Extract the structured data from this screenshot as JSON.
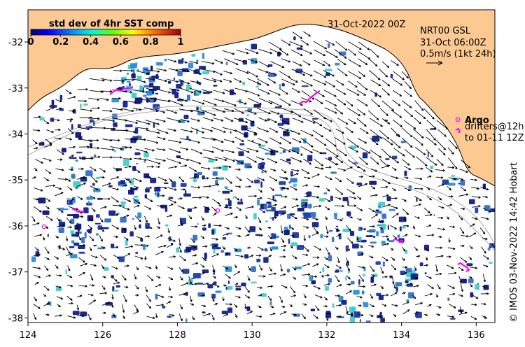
{
  "map": {
    "date_title": "31-Oct-2022 00Z",
    "product": {
      "line1": "NRT00 GSL",
      "line2": "31-Oct 06:00Z",
      "line3": "0.5m/s (1kt 24h)"
    },
    "colorbar": {
      "title": "std dev of 4hr SST comp",
      "ticks": [
        "0",
        "0.2",
        "0.4",
        "0.6",
        "0.8",
        "1"
      ],
      "range": [
        0,
        1
      ]
    },
    "legend": {
      "argo_label": "Argo",
      "drifters_line1": "drifters@12h",
      "drifters_line2": "to 01-11 12Z"
    },
    "credit": "© IMOS 03-Nov-2022 14:42 Hobart",
    "x_axis": {
      "ticks": [
        "124",
        "126",
        "128",
        "130",
        "132",
        "134",
        "136"
      ],
      "range": [
        124,
        136.5
      ],
      "unit": "longitude °E"
    },
    "y_axis": {
      "ticks": [
        "-32",
        "-33",
        "-34",
        "-35",
        "-36",
        "-37",
        "-38"
      ],
      "range": [
        -38.1,
        -31.3
      ],
      "unit": "latitude °S"
    },
    "colors": {
      "land": "#fcc993",
      "sea": "#ffffff",
      "sst_low": "#10208c",
      "sst_mid": "#2a8fd8",
      "sst_high": "#3fd0c8",
      "argo": "#ff00ff",
      "depth_contour": "#aaaaaa",
      "arrow": "#000000"
    }
  }
}
